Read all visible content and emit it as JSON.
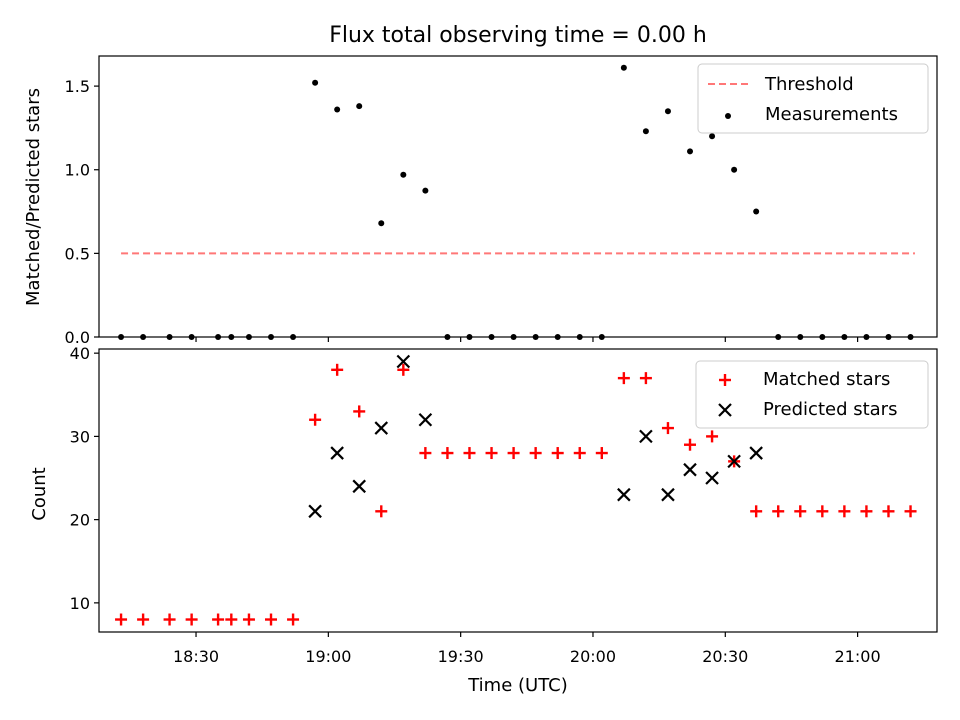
{
  "chart_data": [
    {
      "type": "scatter",
      "title": "Flux total observing time = 0.00 h",
      "xlabel": "",
      "ylabel": "Matched/Predicted stars",
      "xlim": [
        "18:08",
        "21:18"
      ],
      "ylim": [
        0,
        1.68
      ],
      "yticks": [
        0.0,
        0.5,
        1.0,
        1.5
      ],
      "ytick_labels": [
        "0.0",
        "0.5",
        "1.0",
        "1.5"
      ],
      "grid": false,
      "legend_position": "top-right",
      "colors": {
        "threshold": "#ff7777",
        "measurements": "#000000"
      },
      "series": [
        {
          "name": "Threshold",
          "style": "dashed-line",
          "x": [
            "18:13",
            "21:13"
          ],
          "values": [
            0.5,
            0.5
          ]
        },
        {
          "name": "Measurements",
          "style": "dot",
          "x": [
            "18:13",
            "18:18",
            "18:24",
            "18:29",
            "18:35",
            "18:38",
            "18:42",
            "18:47",
            "18:52",
            "18:57",
            "19:02",
            "19:07",
            "19:12",
            "19:17",
            "19:22",
            "19:27",
            "19:32",
            "19:37",
            "19:42",
            "19:47",
            "19:52",
            "19:57",
            "20:02",
            "20:07",
            "20:12",
            "20:17",
            "20:22",
            "20:27",
            "20:32",
            "20:37",
            "20:42",
            "20:47",
            "20:52",
            "20:57",
            "21:02",
            "21:07",
            "21:12"
          ],
          "values": [
            0,
            0,
            0,
            0,
            0,
            0,
            0,
            0,
            0,
            1.52,
            1.36,
            1.38,
            0.68,
            0.97,
            0.875,
            0,
            0,
            0,
            0,
            0,
            0,
            0,
            0,
            1.61,
            1.23,
            1.35,
            1.11,
            1.2,
            1.0,
            0.75,
            0,
            0,
            0,
            0,
            0,
            0,
            0
          ]
        }
      ]
    },
    {
      "type": "scatter",
      "title": "",
      "xlabel": "Time (UTC)",
      "ylabel": "Count",
      "xlim": [
        "18:08",
        "21:18"
      ],
      "ylim": [
        6.5,
        40.5
      ],
      "yticks": [
        10,
        20,
        30,
        40
      ],
      "ytick_labels": [
        "10",
        "20",
        "30",
        "40"
      ],
      "xticks": [
        "18:30",
        "19:00",
        "19:30",
        "20:00",
        "20:30",
        "21:00"
      ],
      "grid": false,
      "legend_position": "top-right",
      "colors": {
        "matched": "#ff0000",
        "predicted": "#000000"
      },
      "series": [
        {
          "name": "Matched stars",
          "marker": "plus",
          "x": [
            "18:13",
            "18:18",
            "18:24",
            "18:29",
            "18:35",
            "18:38",
            "18:42",
            "18:47",
            "18:52",
            "18:57",
            "19:02",
            "19:07",
            "19:12",
            "19:17",
            "19:22",
            "19:27",
            "19:32",
            "19:37",
            "19:42",
            "19:47",
            "19:52",
            "19:57",
            "20:02",
            "20:07",
            "20:12",
            "20:17",
            "20:22",
            "20:27",
            "20:32",
            "20:37",
            "20:42",
            "20:47",
            "20:52",
            "20:57",
            "21:02",
            "21:07",
            "21:12"
          ],
          "values": [
            8,
            8,
            8,
            8,
            8,
            8,
            8,
            8,
            8,
            32,
            38,
            33,
            21,
            38,
            28,
            28,
            28,
            28,
            28,
            28,
            28,
            28,
            28,
            37,
            37,
            31,
            29,
            30,
            27,
            21,
            21,
            21,
            21,
            21,
            21,
            21,
            21
          ]
        },
        {
          "name": "Predicted stars",
          "marker": "x",
          "x": [
            "18:57",
            "19:02",
            "19:07",
            "19:12",
            "19:17",
            "19:22",
            "20:07",
            "20:12",
            "20:17",
            "20:22",
            "20:27",
            "20:32",
            "20:37"
          ],
          "values": [
            21,
            28,
            24,
            31,
            39,
            32,
            23,
            30,
            23,
            26,
            25,
            27,
            28
          ]
        }
      ]
    }
  ]
}
